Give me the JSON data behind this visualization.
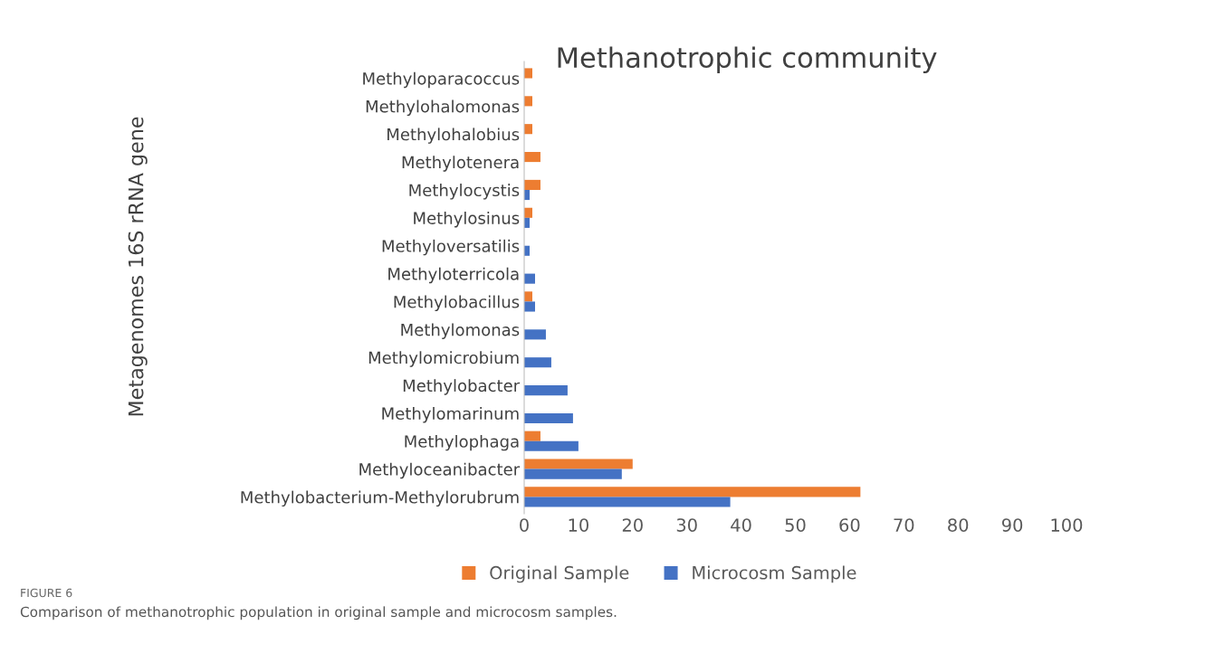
{
  "chart_data": {
    "type": "bar",
    "orientation": "horizontal",
    "title": "Methanotrophic community",
    "ylabel": "Metagenomes 16S rRNA gene",
    "categories": [
      "Methyloparacoccus",
      "Methylohalomonas",
      "Methylohalobius",
      "Methylotenera",
      "Methylocystis",
      "Methylosinus",
      "Methyloversatilis",
      "Methyloterricola",
      "Methylobacillus",
      "Methylomonas",
      "Methylomicrobium",
      "Methylobacter",
      "Methylomarinum",
      "Methylophaga",
      "Methyloceanibacter",
      "Methylobacterium-Methylorubrum"
    ],
    "series": [
      {
        "name": "Original Sample",
        "color": "#ed7d31",
        "values": [
          1.5,
          1.5,
          1.5,
          3,
          3,
          1.5,
          null,
          null,
          1.5,
          null,
          null,
          null,
          null,
          3,
          20,
          62
        ]
      },
      {
        "name": "Microcosm Sample",
        "color": "#4472c4",
        "values": [
          null,
          null,
          null,
          null,
          1,
          1,
          1,
          2,
          2,
          4,
          5,
          8,
          9,
          10,
          18,
          38
        ]
      }
    ],
    "xlim": [
      0,
      100
    ],
    "xticks": [
      0,
      10,
      20,
      30,
      40,
      50,
      60,
      70,
      80,
      90,
      100
    ],
    "grid": false,
    "legend": "bottom",
    "annotations": [
      "FIGURE 6",
      "Comparison of methanotrophic population in original sample and microcosm samples."
    ]
  }
}
